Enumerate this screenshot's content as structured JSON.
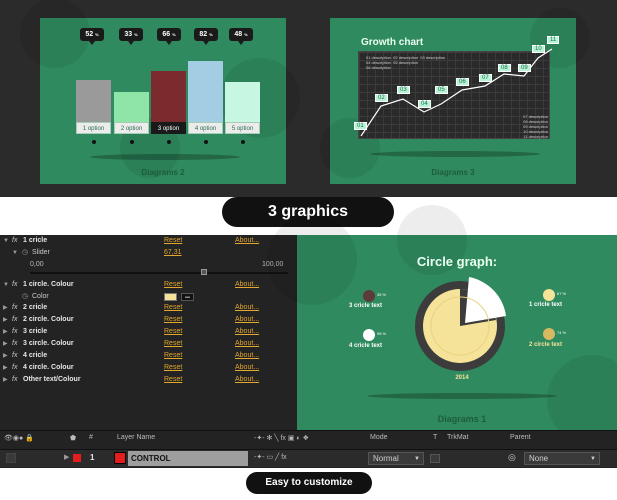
{
  "diagram2": {
    "caption": "Diagrams 2",
    "bubbles": [
      "52",
      "33",
      "66",
      "82",
      "48"
    ],
    "unit": "%",
    "options": [
      "1 option",
      "2 option",
      "3 option",
      "4 option",
      "5 option"
    ],
    "colors": [
      "#9a9a9a",
      "#8fe5a8",
      "#7b2a2e",
      "#a3cde3",
      "#c7f7e3"
    ],
    "values": [
      52,
      33,
      66,
      82,
      48
    ]
  },
  "diagram3": {
    "title": "Growth chart",
    "caption": "Diagrams 3",
    "points": [
      "01",
      "02",
      "03",
      "04",
      "05",
      "06",
      "07",
      "08",
      "09",
      "10",
      "11"
    ],
    "desc_row1": [
      "01 description",
      "02 description",
      "03 description"
    ],
    "desc_row2": [
      "04 description",
      "05 description"
    ],
    "desc_row3": [
      "06 description"
    ],
    "desc_right": [
      "07 description",
      "08 description",
      "09 description",
      "10 description",
      "11 description"
    ]
  },
  "badge": "3 graphics",
  "effects": {
    "rows": [
      {
        "name": "1 cricle",
        "reset": "Reset",
        "about": "About..."
      },
      {
        "name": "2 cricle",
        "reset": "Reset",
        "about": "About..."
      },
      {
        "name": "2 circle. Colour",
        "reset": "Reset",
        "about": "About..."
      },
      {
        "name": "3 cricle",
        "reset": "Reset",
        "about": "About..."
      },
      {
        "name": "3 circle. Colour",
        "reset": "Reset",
        "about": "About..."
      },
      {
        "name": "4 cricle",
        "reset": "Reset",
        "about": "About..."
      },
      {
        "name": "4 circle. Colour",
        "reset": "Reset",
        "about": "About..."
      },
      {
        "name": "Other text/Colour",
        "reset": "Reset",
        "about": "About..."
      }
    ],
    "first": {
      "name": "1 cricle",
      "reset": "Reset",
      "about": "About..."
    },
    "slider_label": "Slider",
    "slider_value": "67,31",
    "slider_min": "0,00",
    "slider_max": "100,00",
    "slider_fraction": 0.6731,
    "colour_row": {
      "name": "1 circle. Colour",
      "reset": "Reset",
      "about": "About..."
    },
    "color_label": "Color",
    "color_value": "#f6e39a"
  },
  "diagram1": {
    "title": "Circle graph:",
    "caption": "Diagrams 1",
    "year": "2014",
    "labels": [
      {
        "pct": "67 %",
        "text": "1 cricle text"
      },
      {
        "pct": "74 %",
        "text": "2 circle text"
      },
      {
        "pct": "35 %",
        "text": "3 cricle text"
      },
      {
        "pct": "98 %",
        "text": "4 cricle text"
      }
    ]
  },
  "layers": {
    "headers": [
      "#",
      "Layer Name",
      "Mode",
      "T",
      "TrkMat",
      "Parent"
    ],
    "row_num": "1",
    "layer_name": "CONTROL",
    "layer_color": "#e11d1d",
    "mode": "Normal",
    "parent": "None"
  },
  "footer": "Easy to customize"
}
